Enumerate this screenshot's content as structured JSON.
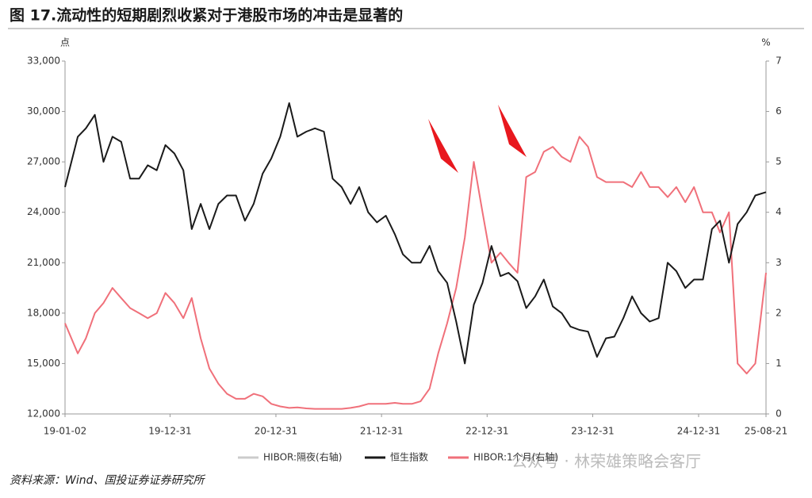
{
  "chart_data": {
    "type": "line",
    "title": "图 17.流动性的短期剧烈收紧对于港股市场的冲击是显著的",
    "y_label": "点",
    "y2_label": "%",
    "source": "资料来源：Wind、国投证券证券研究所",
    "watermark": "公众号 · 林荣雄策略会客厅",
    "x": [
      "19-01-02",
      "19-02-15",
      "19-03-15",
      "19-04-15",
      "19-05-15",
      "19-06-15",
      "19-07-15",
      "19-08-15",
      "19-09-15",
      "19-10-15",
      "19-11-15",
      "19-12-15",
      "20-01-15",
      "20-02-15",
      "20-03-15",
      "20-04-15",
      "20-05-15",
      "20-06-15",
      "20-07-15",
      "20-08-15",
      "20-09-15",
      "20-10-15",
      "20-11-15",
      "20-12-15",
      "21-01-15",
      "21-02-15",
      "21-03-15",
      "21-04-15",
      "21-05-15",
      "21-06-15",
      "21-07-15",
      "21-08-15",
      "21-09-15",
      "21-10-15",
      "21-11-15",
      "21-12-15",
      "22-01-15",
      "22-02-15",
      "22-03-15",
      "22-04-15",
      "22-05-15",
      "22-06-15",
      "22-07-15",
      "22-08-15",
      "22-09-15",
      "22-10-15",
      "22-11-15",
      "22-12-15",
      "23-01-15",
      "23-02-15",
      "23-03-15",
      "23-04-15",
      "23-05-15",
      "23-06-15",
      "23-07-15",
      "23-08-15",
      "23-09-15",
      "23-10-15",
      "23-11-15",
      "23-12-15",
      "24-01-15",
      "24-02-15",
      "24-03-15",
      "24-04-15",
      "24-05-15",
      "24-06-15",
      "24-07-15",
      "24-08-15",
      "24-09-15",
      "24-10-15",
      "24-11-15",
      "24-12-15",
      "25-01-15",
      "25-02-15",
      "25-03-15",
      "25-04-15",
      "25-05-15",
      "25-06-15",
      "25-07-15",
      "25-08-21"
    ],
    "xlim": [
      "19-01-02",
      "25-08-21"
    ],
    "xticks": [
      "19-01-02",
      "19-12-31",
      "20-12-31",
      "21-12-31",
      "22-12-31",
      "23-12-31",
      "24-12-31",
      "25-08-21"
    ],
    "ylim": [
      12000,
      33000
    ],
    "yticks": [
      {
        "value": 12000,
        "label": "12,000"
      },
      {
        "value": 15000,
        "label": "15,000"
      },
      {
        "value": 18000,
        "label": "18,000"
      },
      {
        "value": 21000,
        "label": "21,000"
      },
      {
        "value": 24000,
        "label": "24,000"
      },
      {
        "value": 27000,
        "label": "27,000"
      },
      {
        "value": 30000,
        "label": "30,000"
      },
      {
        "value": 33000,
        "label": "33,000"
      }
    ],
    "y2lim": [
      0,
      7
    ],
    "y2ticks": [
      0,
      1,
      2,
      3,
      4,
      5,
      6,
      7
    ],
    "series": [
      {
        "name": "HIBOR:隔夜(右轴)",
        "color": "#cccccc",
        "axis": "y2",
        "values": [
          null,
          null,
          null,
          null,
          null,
          null,
          null,
          null,
          null,
          null,
          null,
          null,
          null,
          null,
          null,
          null,
          null,
          null,
          null,
          null,
          null,
          null,
          null,
          null,
          null,
          null,
          null,
          null,
          null,
          null,
          null,
          null,
          null,
          null,
          null,
          null,
          null,
          null,
          null,
          null,
          null,
          null,
          null,
          null,
          null,
          null,
          null,
          null,
          null,
          null,
          null,
          null,
          null,
          null,
          null,
          null,
          null,
          null,
          null,
          null,
          null,
          null,
          null,
          null,
          null,
          null,
          null,
          null,
          null,
          null,
          null,
          null,
          null,
          null,
          null,
          null,
          null,
          null,
          null,
          null
        ]
      },
      {
        "name": "恒生指数",
        "color": "#1a1a1a",
        "values": [
          25500,
          28500,
          29000,
          29800,
          27000,
          28500,
          28200,
          26000,
          26000,
          26800,
          26500,
          28000,
          27500,
          26500,
          23000,
          24500,
          23000,
          24500,
          25000,
          25000,
          23500,
          24500,
          26300,
          27200,
          28500,
          30500,
          28500,
          28800,
          29000,
          28800,
          26000,
          25500,
          24500,
          25500,
          24000,
          23400,
          23800,
          22700,
          21500,
          21000,
          21000,
          22000,
          20500,
          19800,
          17500,
          15000,
          18500,
          19800,
          22000,
          20200,
          20400,
          19900,
          18300,
          19000,
          20000,
          18400,
          18000,
          17200,
          17000,
          16900,
          15400,
          16500,
          16600,
          17700,
          19000,
          18000,
          17500,
          17700,
          21000,
          20500,
          19500,
          20000,
          20000,
          23000,
          23500,
          21000,
          23300,
          24000,
          25000,
          25200
        ]
      },
      {
        "name": "HIBOR:1个月(右轴)",
        "color": "#f0707a",
        "axis": "y2",
        "values": [
          1.8,
          1.2,
          1.5,
          2.0,
          2.2,
          2.5,
          2.3,
          2.1,
          2.0,
          1.9,
          2.0,
          2.4,
          2.2,
          1.9,
          2.3,
          1.5,
          0.9,
          0.6,
          0.4,
          0.3,
          0.3,
          0.4,
          0.35,
          0.2,
          0.15,
          0.12,
          0.13,
          0.11,
          0.1,
          0.1,
          0.1,
          0.1,
          0.12,
          0.15,
          0.2,
          0.2,
          0.2,
          0.22,
          0.2,
          0.2,
          0.25,
          0.5,
          1.2,
          1.8,
          2.5,
          3.5,
          5.0,
          4.0,
          3.0,
          3.2,
          3.0,
          2.8,
          4.7,
          4.8,
          5.2,
          5.3,
          5.1,
          5.0,
          5.5,
          5.3,
          4.7,
          4.6,
          4.6,
          4.6,
          4.5,
          4.8,
          4.5,
          4.5,
          4.3,
          4.5,
          4.2,
          4.5,
          4.0,
          4.0,
          3.6,
          4.0,
          1.0,
          0.8,
          1.0,
          2.8
        ]
      }
    ]
  }
}
